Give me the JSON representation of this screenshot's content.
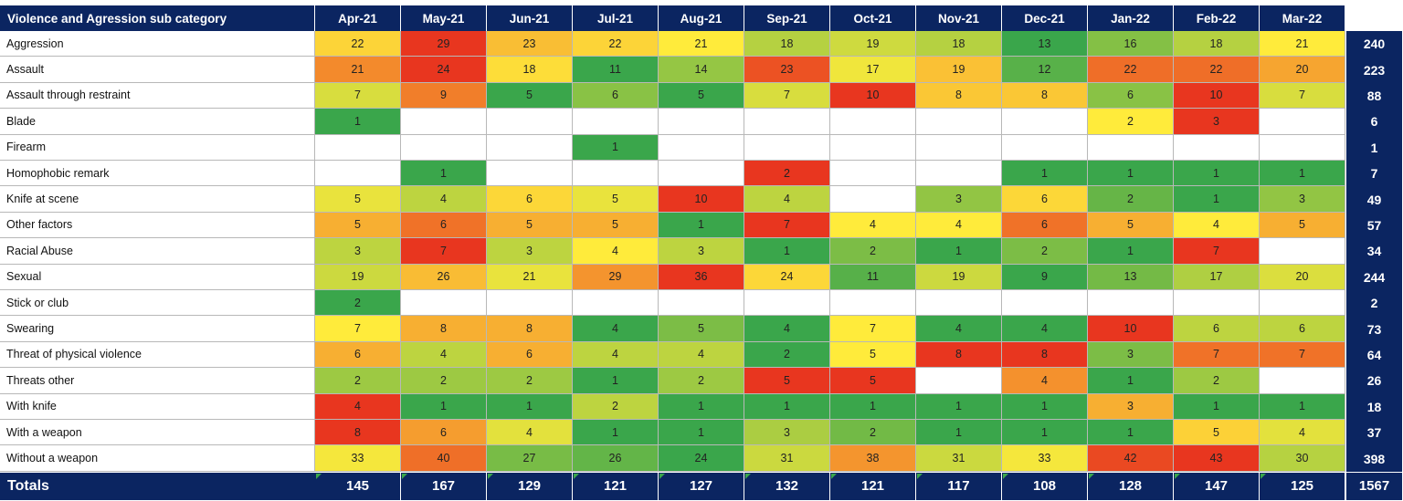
{
  "table": {
    "title": "Violence and Agression sub category",
    "months": [
      "Apr-21",
      "May-21",
      "Jun-21",
      "Jul-21",
      "Aug-21",
      "Sep-21",
      "Oct-21",
      "Nov-21",
      "Dec-21",
      "Jan-22",
      "Feb-22",
      "Mar-22"
    ],
    "totals_label": "Totals",
    "colors": {
      "header_bg": "#0b2561",
      "header_text": "#ffffff",
      "low": "#3aa64b",
      "mid": "#ffeb3b",
      "high": "#e8361f"
    }
  },
  "chart_data": {
    "type": "heatmap",
    "title": "Violence and Agression sub category",
    "columns": [
      "Apr-21",
      "May-21",
      "Jun-21",
      "Jul-21",
      "Aug-21",
      "Sep-21",
      "Oct-21",
      "Nov-21",
      "Dec-21",
      "Jan-22",
      "Feb-22",
      "Mar-22"
    ],
    "rows": [
      {
        "label": "Aggression",
        "values": [
          22,
          29,
          23,
          22,
          21,
          18,
          19,
          18,
          13,
          16,
          18,
          21
        ],
        "total": 240
      },
      {
        "label": "Assault",
        "values": [
          21,
          24,
          18,
          11,
          14,
          23,
          17,
          19,
          12,
          22,
          22,
          20
        ],
        "total": 223
      },
      {
        "label": "Assault through restraint",
        "values": [
          7,
          9,
          5,
          6,
          5,
          7,
          10,
          8,
          8,
          6,
          10,
          7
        ],
        "total": 88
      },
      {
        "label": "Blade",
        "values": [
          1,
          null,
          null,
          null,
          null,
          null,
          null,
          null,
          null,
          2,
          3,
          null
        ],
        "total": 6
      },
      {
        "label": "Firearm",
        "values": [
          null,
          null,
          null,
          1,
          null,
          null,
          null,
          null,
          null,
          null,
          null,
          null
        ],
        "total": 1
      },
      {
        "label": "Homophobic remark",
        "values": [
          null,
          1,
          null,
          null,
          null,
          2,
          null,
          null,
          1,
          1,
          1,
          1
        ],
        "total": 7
      },
      {
        "label": "Knife at scene",
        "values": [
          5,
          4,
          6,
          5,
          10,
          4,
          null,
          3,
          6,
          2,
          1,
          3
        ],
        "total": 49
      },
      {
        "label": "Other factors",
        "values": [
          5,
          6,
          5,
          5,
          1,
          7,
          4,
          4,
          6,
          5,
          4,
          5
        ],
        "total": 57
      },
      {
        "label": "Racial Abuse",
        "values": [
          3,
          7,
          3,
          4,
          3,
          1,
          2,
          1,
          2,
          1,
          7,
          null
        ],
        "total": 34
      },
      {
        "label": "Sexual",
        "values": [
          19,
          26,
          21,
          29,
          36,
          24,
          11,
          19,
          9,
          13,
          17,
          20
        ],
        "total": 244
      },
      {
        "label": "Stick or club",
        "values": [
          2,
          null,
          null,
          null,
          null,
          null,
          null,
          null,
          null,
          null,
          null,
          null
        ],
        "total": 2
      },
      {
        "label": "Swearing",
        "values": [
          7,
          8,
          8,
          4,
          5,
          4,
          7,
          4,
          4,
          10,
          6,
          6
        ],
        "total": 73
      },
      {
        "label": "Threat of physical violence",
        "values": [
          6,
          4,
          6,
          4,
          4,
          2,
          5,
          8,
          8,
          3,
          7,
          7
        ],
        "total": 64
      },
      {
        "label": "Threats other",
        "values": [
          2,
          2,
          2,
          1,
          2,
          5,
          5,
          null,
          4,
          1,
          2,
          null
        ],
        "total": 26
      },
      {
        "label": "With knife",
        "values": [
          4,
          1,
          1,
          2,
          1,
          1,
          1,
          1,
          1,
          3,
          1,
          1
        ],
        "total": 18
      },
      {
        "label": "With a weapon",
        "values": [
          8,
          6,
          4,
          1,
          1,
          3,
          2,
          1,
          1,
          1,
          5,
          4
        ],
        "total": 37
      },
      {
        "label": "Without a weapon",
        "values": [
          33,
          40,
          27,
          26,
          24,
          31,
          38,
          31,
          33,
          42,
          43,
          30
        ],
        "total": 398
      }
    ],
    "column_totals": [
      145,
      167,
      129,
      121,
      127,
      132,
      121,
      117,
      108,
      128,
      147,
      125
    ],
    "grand_total": 1567
  }
}
